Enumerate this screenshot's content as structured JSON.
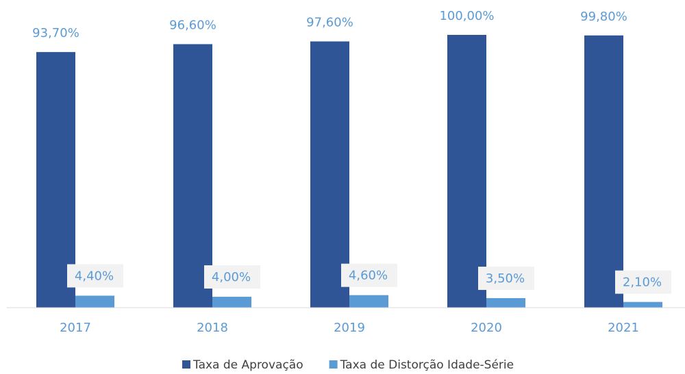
{
  "chart_data": {
    "type": "bar",
    "categories": [
      "2017",
      "2018",
      "2019",
      "2020",
      "2021"
    ],
    "series": [
      {
        "name": "Taxa de Aprovação",
        "color": "#2f5597",
        "values": [
          93.7,
          96.6,
          97.6,
          100.0,
          99.8
        ],
        "value_labels": [
          "93,70%",
          "96,60%",
          "97,60%",
          "100,00%",
          "99,80%"
        ]
      },
      {
        "name": "Taxa de Distorção Idade-Série",
        "color": "#5b9bd5",
        "values": [
          4.4,
          4.0,
          4.6,
          3.5,
          2.1
        ],
        "value_labels": [
          "4,40%",
          "4,00%",
          "4,60%",
          "3,50%",
          "2,10%"
        ]
      }
    ],
    "ylim": [
      0,
      100
    ]
  }
}
